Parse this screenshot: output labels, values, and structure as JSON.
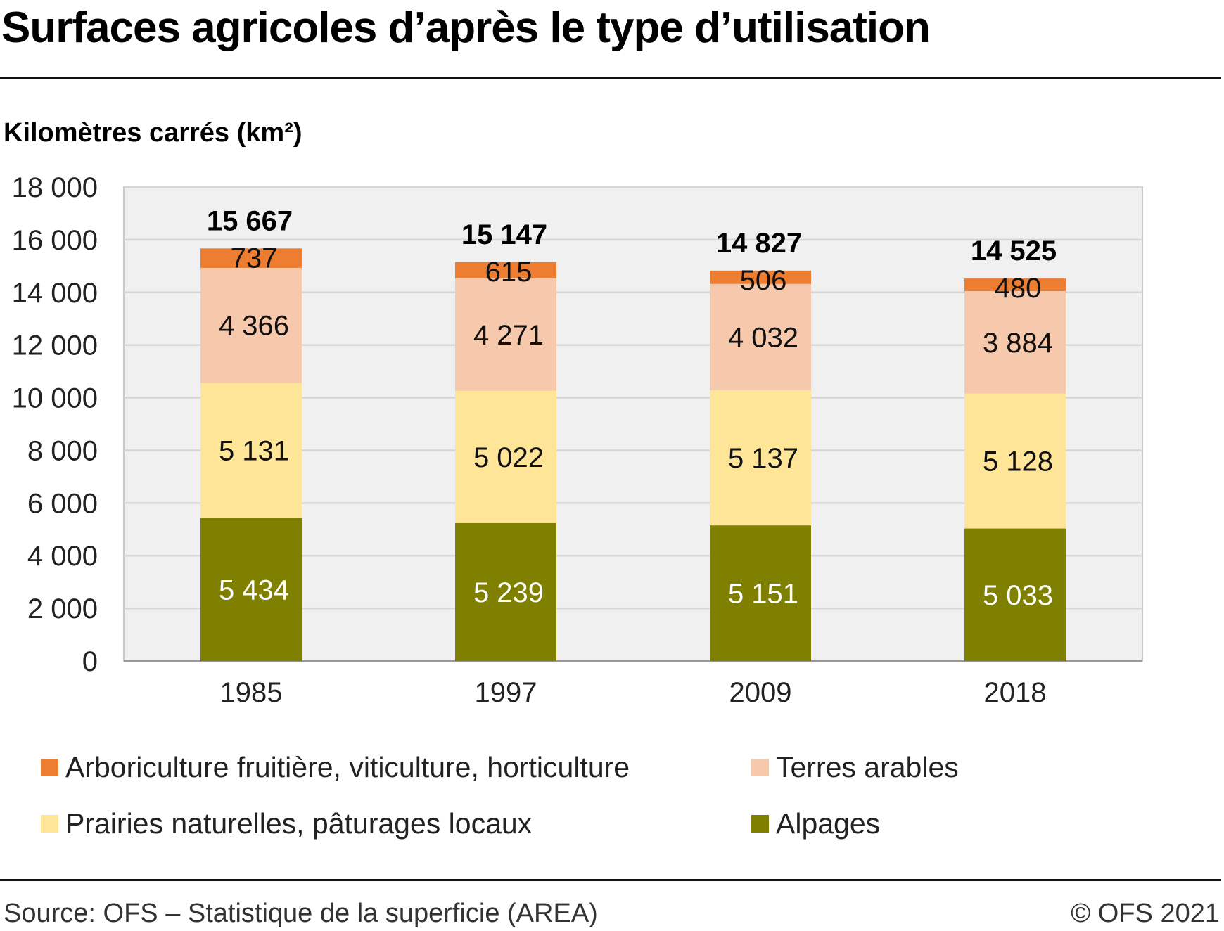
{
  "title": "Surfaces agricoles d’après le type d’utilisation",
  "source": "Source: OFS – Statistique de la superficie (AREA)",
  "copyright": "© OFS 2021",
  "chart_data": {
    "type": "bar",
    "stacked": true,
    "title": "Surfaces agricoles d’après le type d’utilisation",
    "ylabel": "Kilomètres carrés (km²)",
    "xlabel": "",
    "ylim": [
      0,
      18000
    ],
    "yticks": [
      0,
      2000,
      4000,
      6000,
      8000,
      10000,
      12000,
      14000,
      16000,
      18000
    ],
    "ytick_labels": [
      "0",
      "2 000",
      "4 000",
      "6 000",
      "8 000",
      "10 000",
      "12 000",
      "14 000",
      "16 000",
      "18 000"
    ],
    "grid": true,
    "categories": [
      "1985",
      "1997",
      "2009",
      "2018"
    ],
    "totals": [
      15667,
      15147,
      14827,
      14525
    ],
    "total_labels": [
      "15 667",
      "15 147",
      "14 827",
      "14 525"
    ],
    "series": [
      {
        "name": "Alpages",
        "color": "#808000",
        "label_color": "#ffffff",
        "values": [
          5434,
          5239,
          5151,
          5033
        ],
        "labels": [
          "5 434",
          "5 239",
          "5 151",
          "5 033"
        ]
      },
      {
        "name": "Prairies naturelles, pâturages locaux",
        "color": "#fee598",
        "label_color": "#111111",
        "values": [
          5131,
          5022,
          5137,
          5128
        ],
        "labels": [
          "5 131",
          "5 022",
          "5 137",
          "5 128"
        ]
      },
      {
        "name": "Terres arables",
        "color": "#f7c9ac",
        "label_color": "#111111",
        "values": [
          4366,
          4271,
          4032,
          3884
        ],
        "labels": [
          "4 366",
          "4 271",
          "4 032",
          "3 884"
        ]
      },
      {
        "name": "Arboriculture fruitière, viticulture, horticulture",
        "color": "#ed7d31",
        "label_color": "#111111",
        "values": [
          737,
          615,
          506,
          480
        ],
        "labels": [
          "737",
          "615",
          "506",
          "480"
        ]
      }
    ],
    "legend": {
      "placement": "bottom",
      "order": [
        3,
        2,
        1,
        0
      ]
    }
  }
}
